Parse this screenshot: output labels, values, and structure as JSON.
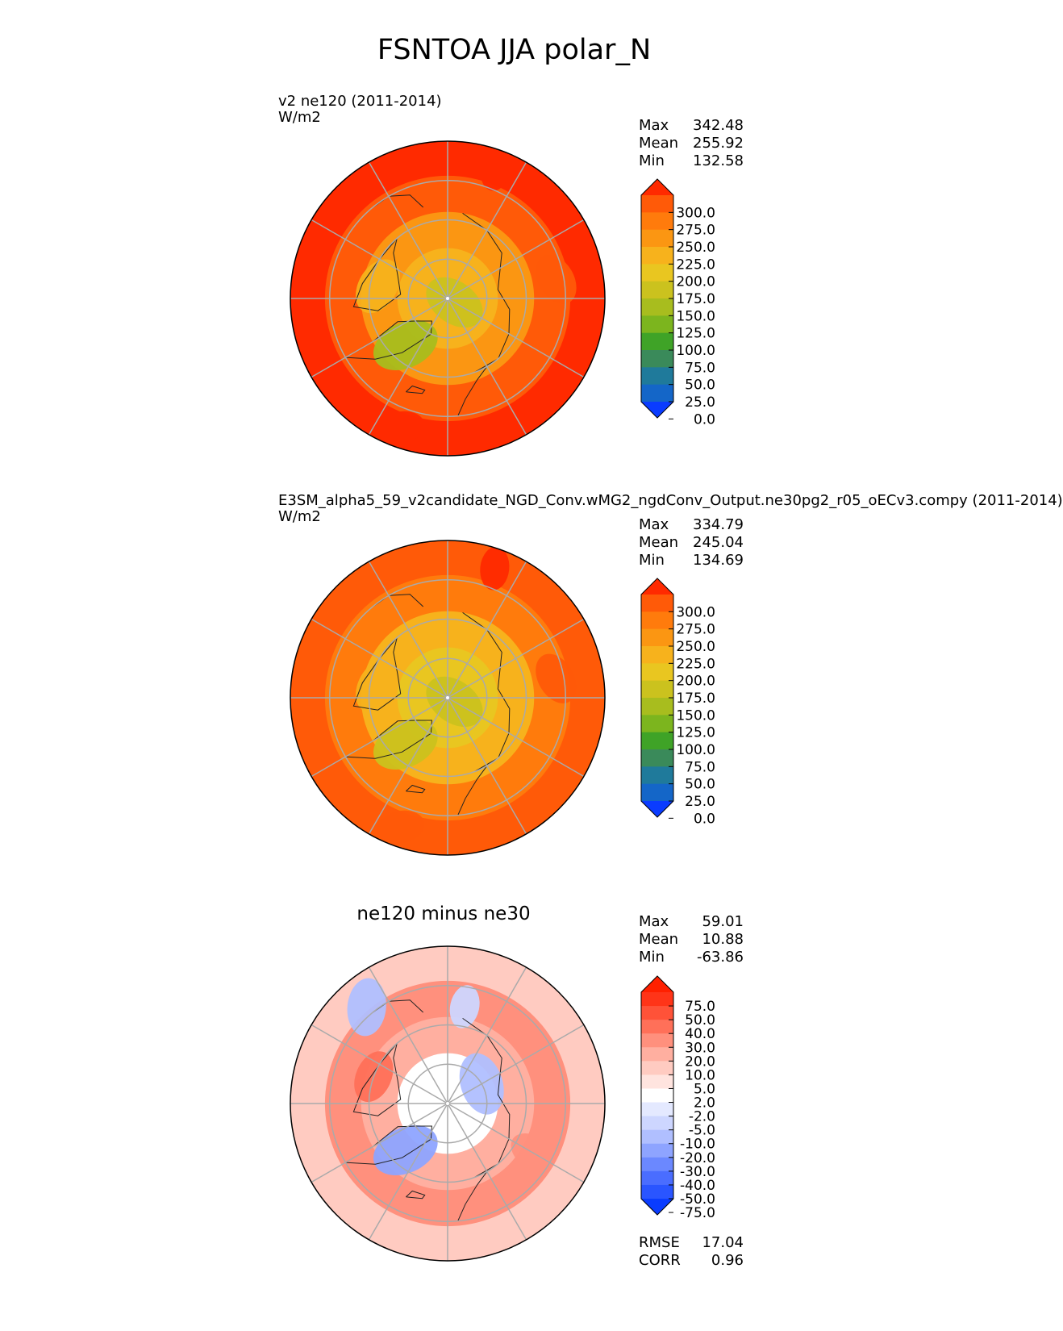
{
  "title": "FSNTOA JJA polar_N",
  "chart_data": [
    {
      "type": "heatmap",
      "projection": "north-polar-stereographic",
      "name": "v2 ne120 (2011-2014)",
      "units": "W/m2",
      "stats": [
        {
          "label": "Max",
          "value": "342.48"
        },
        {
          "label": "Mean",
          "value": "255.92"
        },
        {
          "label": "Min",
          "value": "132.58"
        }
      ],
      "colorbar": {
        "levels": [
          0,
          25,
          50,
          75,
          100,
          125,
          150,
          175,
          200,
          225,
          250,
          275,
          300
        ],
        "labels": [
          "300.0",
          "275.0",
          "250.0",
          "225.0",
          "200.0",
          "175.0",
          "150.0",
          "125.0",
          "100.0",
          "75.0",
          "50.0",
          "25.0",
          "0.0"
        ],
        "colors": [
          "#0a3cff",
          "#1466c8",
          "#1f7a9b",
          "#3a8a5a",
          "#3fa327",
          "#7cb51e",
          "#a8bd1e",
          "#cbc21e",
          "#e9c620",
          "#f7b21c",
          "#fb9612",
          "#ff7b0c",
          "#ff5a08",
          "#ff2a00"
        ],
        "extend": "both"
      },
      "rings": {
        "center": 200,
        "mid": 235,
        "outer": 275,
        "edge": 300
      },
      "features": [
        {
          "lon": -42,
          "lat": 74,
          "value": 140
        },
        {
          "lon": 60,
          "lat": 88,
          "value": 165
        },
        {
          "lon": -100,
          "lat": 72,
          "value": 215
        },
        {
          "lon": 100,
          "lat": 62,
          "value": 290
        },
        {
          "lon": -20,
          "lat": 55,
          "value": 300
        },
        {
          "lon": 160,
          "lat": 55,
          "value": 300
        }
      ]
    },
    {
      "type": "heatmap",
      "projection": "north-polar-stereographic",
      "name": "E3SM_alpha5_59_v2candidate_NGD_Conv.wMG2_ngdConv_Output.ne30pg2_r05_oECv3.compy (2011-2014)",
      "units": "W/m2",
      "stats": [
        {
          "label": "Max",
          "value": "334.79"
        },
        {
          "label": "Mean",
          "value": "245.04"
        },
        {
          "label": "Min",
          "value": "134.69"
        }
      ],
      "colorbar": {
        "levels": [
          0,
          25,
          50,
          75,
          100,
          125,
          150,
          175,
          200,
          225,
          250,
          275,
          300
        ],
        "labels": [
          "300.0",
          "275.0",
          "250.0",
          "225.0",
          "200.0",
          "175.0",
          "150.0",
          "125.0",
          "100.0",
          "75.0",
          "50.0",
          "25.0",
          "0.0"
        ],
        "colors": [
          "#0a3cff",
          "#1466c8",
          "#1f7a9b",
          "#3a8a5a",
          "#3fa327",
          "#7cb51e",
          "#a8bd1e",
          "#cbc21e",
          "#e9c620",
          "#f7b21c",
          "#fb9612",
          "#ff7b0c",
          "#ff5a08",
          "#ff2a00"
        ],
        "extend": "both"
      },
      "rings": {
        "center": 185,
        "mid": 215,
        "outer": 260,
        "edge": 290
      },
      "features": [
        {
          "lon": -42,
          "lat": 74,
          "value": 150
        },
        {
          "lon": 60,
          "lat": 88,
          "value": 170
        },
        {
          "lon": -100,
          "lat": 72,
          "value": 205
        },
        {
          "lon": 100,
          "lat": 62,
          "value": 275
        },
        {
          "lon": -20,
          "lat": 55,
          "value": 295
        },
        {
          "lon": 160,
          "lat": 55,
          "value": 300
        }
      ]
    },
    {
      "type": "heatmap",
      "projection": "north-polar-stereographic",
      "title": "ne120 minus ne30",
      "stats": [
        {
          "label": "Max",
          "value": "59.01"
        },
        {
          "label": "Mean",
          "value": "10.88"
        },
        {
          "label": "Min",
          "value": "-63.86"
        }
      ],
      "colorbar": {
        "levels": [
          -75,
          -50,
          -40,
          -30,
          -20,
          -10,
          -5,
          -2,
          2,
          5,
          10,
          20,
          30,
          40,
          50,
          75
        ],
        "labels": [
          "75.0",
          "50.0",
          "40.0",
          "30.0",
          "20.0",
          "10.0",
          "5.0",
          "2.0",
          "-2.0",
          "-5.0",
          "-10.0",
          "-20.0",
          "-30.0",
          "-40.0",
          "-50.0",
          "-75.0"
        ],
        "colors": [
          "#0a3cff",
          "#2a55ff",
          "#4a6dff",
          "#6b88ff",
          "#8ea4ff",
          "#b0bfff",
          "#cdd6ff",
          "#e4e9ff",
          "#ffffff",
          "#ffe4df",
          "#ffcbc1",
          "#ffafa0",
          "#ff907d",
          "#ff7059",
          "#ff5238",
          "#ff3418",
          "#ff2000"
        ],
        "extend": "both"
      },
      "rings": {
        "center": 0,
        "mid": 15,
        "outer": 20,
        "edge": 8
      },
      "features": [
        {
          "lon": -42,
          "lat": 74,
          "value": -25
        },
        {
          "lon": 120,
          "lat": 80,
          "value": -12
        },
        {
          "lon": -140,
          "lat": 58,
          "value": -15
        },
        {
          "lon": -110,
          "lat": 70,
          "value": 30
        },
        {
          "lon": 60,
          "lat": 65,
          "value": 25
        },
        {
          "lon": 170,
          "lat": 65,
          "value": -8
        }
      ],
      "metrics": [
        {
          "label": "RMSE",
          "value": "17.04"
        },
        {
          "label": "CORR",
          "value": "0.96"
        }
      ]
    }
  ]
}
